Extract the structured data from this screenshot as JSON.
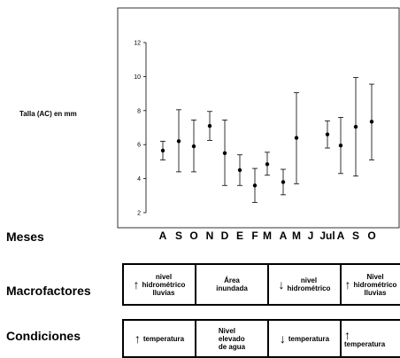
{
  "chart_data": {
    "type": "scatter",
    "ylabel": "Talla (AC) en mm",
    "xlabel": "Meses",
    "ylim": [
      2,
      12
    ],
    "yticks": [
      2,
      4,
      6,
      8,
      10,
      12
    ],
    "categories": [
      "A",
      "S",
      "O",
      "N",
      "D",
      "E",
      "F",
      "M",
      "A",
      "M",
      "J",
      "Jul",
      "A",
      "S",
      "O"
    ],
    "series": [
      {
        "mean": [
          5.65,
          6.2,
          5.9,
          7.1,
          5.5,
          4.5,
          3.6,
          4.85,
          3.8,
          6.4,
          null,
          6.6,
          5.95,
          7.05,
          7.35
        ],
        "lower": [
          5.1,
          4.4,
          4.4,
          6.25,
          3.6,
          3.6,
          2.6,
          4.2,
          3.05,
          3.7,
          null,
          5.8,
          4.3,
          4.15,
          5.1
        ],
        "upper": [
          6.2,
          8.05,
          7.45,
          7.95,
          7.45,
          5.4,
          4.6,
          5.55,
          4.55,
          9.05,
          null,
          7.4,
          7.6,
          9.95,
          9.55
        ]
      }
    ],
    "grid": false
  },
  "macrofactores": {
    "label": "Macrofactores",
    "cells": [
      {
        "arrow": "↑",
        "lines": [
          "nivel",
          "hidrométrico",
          "lluvias"
        ]
      },
      {
        "arrow": "",
        "lines": [
          "Área",
          "inundada"
        ]
      },
      {
        "arrow": "↓",
        "lines": [
          "nivel",
          "hidrométrico"
        ]
      },
      {
        "arrow": "↑",
        "lines": [
          "Nivel",
          "hidrométrico",
          "lluvias"
        ]
      }
    ]
  },
  "condiciones": {
    "label": "Condiciones",
    "cells": [
      {
        "arrow": "↑",
        "lines": [
          "temperatura"
        ]
      },
      {
        "arrow": "",
        "lines": [
          "Nivel",
          "elevado",
          "de agua"
        ]
      },
      {
        "arrow": "↓",
        "lines": [
          "temperatura"
        ]
      },
      {
        "arrow": "↑",
        "lines": [
          "temperatura"
        ]
      }
    ]
  }
}
